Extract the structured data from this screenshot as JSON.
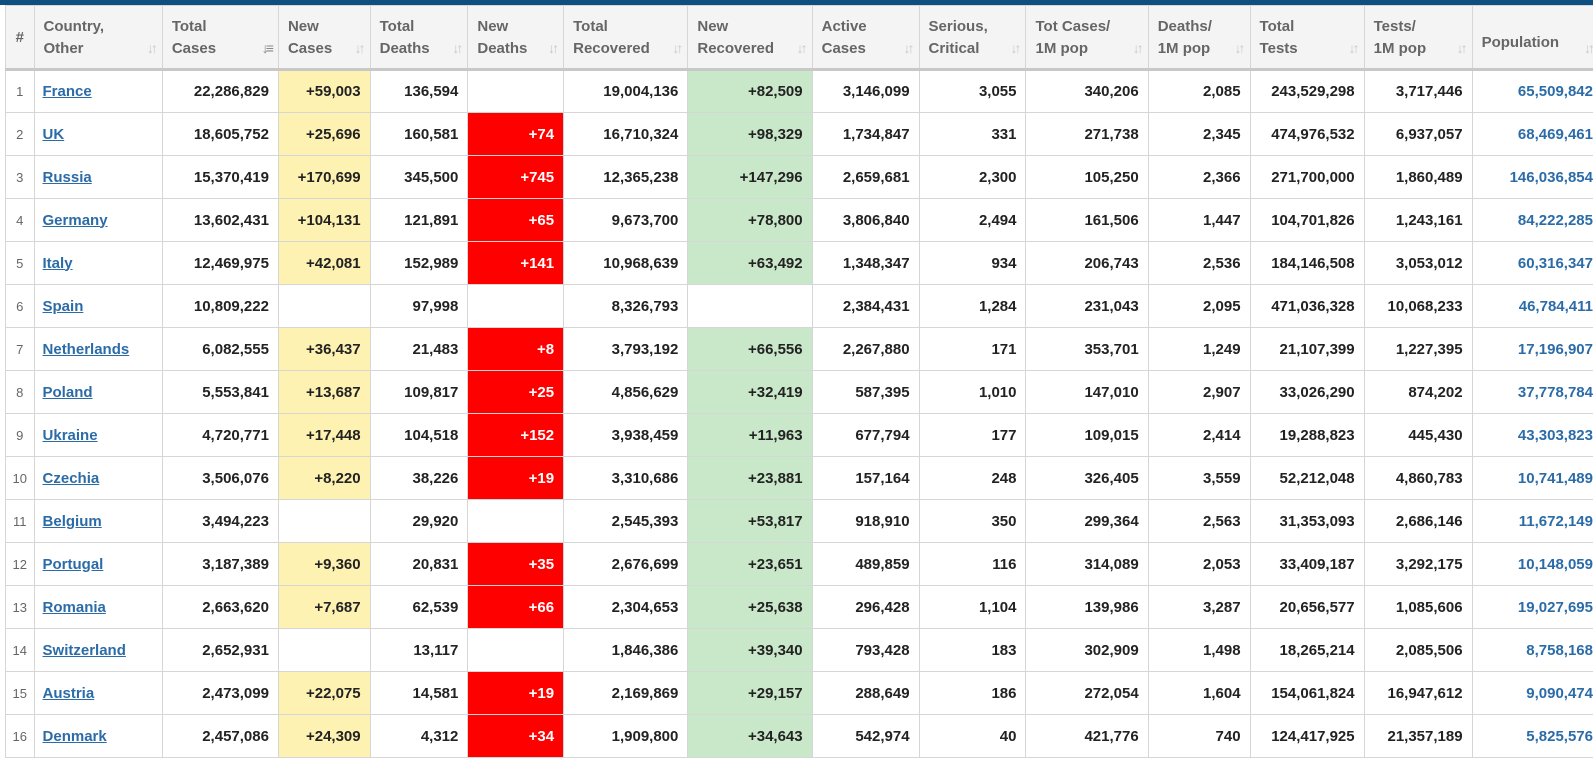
{
  "headers": [
    {
      "key": "idx",
      "lines": [
        "#"
      ]
    },
    {
      "key": "country",
      "lines": [
        "Country,",
        "Other"
      ]
    },
    {
      "key": "total_cases",
      "lines": [
        "Total",
        "Cases"
      ]
    },
    {
      "key": "new_cases",
      "lines": [
        "New",
        "Cases"
      ]
    },
    {
      "key": "total_deaths",
      "lines": [
        "Total",
        "Deaths"
      ]
    },
    {
      "key": "new_deaths",
      "lines": [
        "New",
        "Deaths"
      ]
    },
    {
      "key": "total_recovered",
      "lines": [
        "Total",
        "Recovered"
      ]
    },
    {
      "key": "new_recovered",
      "lines": [
        "New",
        "Recovered"
      ]
    },
    {
      "key": "active_cases",
      "lines": [
        "Active",
        "Cases"
      ]
    },
    {
      "key": "serious_critical",
      "lines": [
        "Serious,",
        "Critical"
      ]
    },
    {
      "key": "cases_per_1m",
      "lines": [
        "Tot Cases/",
        "1M pop"
      ]
    },
    {
      "key": "deaths_per_1m",
      "lines": [
        "Deaths/",
        "1M pop"
      ]
    },
    {
      "key": "total_tests",
      "lines": [
        "Total",
        "Tests"
      ]
    },
    {
      "key": "tests_per_1m",
      "lines": [
        "Tests/",
        "1M pop"
      ]
    },
    {
      "key": "population",
      "lines": [
        "Population"
      ]
    }
  ],
  "sort_icon": "sort-arrows-icon",
  "sorted_column": "total_cases",
  "colors": {
    "new_cases_bg": "#fef2b3",
    "new_deaths_bg": "#ff0000",
    "new_recovered_bg": "#c9e7c9",
    "link": "#2b6ca8",
    "top_bar": "#0f4f80"
  },
  "rows": [
    {
      "idx": "1",
      "country": "France",
      "total_cases": "22,286,829",
      "new_cases": "+59,003",
      "total_deaths": "136,594",
      "new_deaths": "",
      "total_recovered": "19,004,136",
      "new_recovered": "+82,509",
      "active_cases": "3,146,099",
      "serious_critical": "3,055",
      "cases_per_1m": "340,206",
      "deaths_per_1m": "2,085",
      "total_tests": "243,529,298",
      "tests_per_1m": "3,717,446",
      "population": "65,509,842"
    },
    {
      "idx": "2",
      "country": "UK",
      "total_cases": "18,605,752",
      "new_cases": "+25,696",
      "total_deaths": "160,581",
      "new_deaths": "+74",
      "total_recovered": "16,710,324",
      "new_recovered": "+98,329",
      "active_cases": "1,734,847",
      "serious_critical": "331",
      "cases_per_1m": "271,738",
      "deaths_per_1m": "2,345",
      "total_tests": "474,976,532",
      "tests_per_1m": "6,937,057",
      "population": "68,469,461"
    },
    {
      "idx": "3",
      "country": "Russia",
      "total_cases": "15,370,419",
      "new_cases": "+170,699",
      "total_deaths": "345,500",
      "new_deaths": "+745",
      "total_recovered": "12,365,238",
      "new_recovered": "+147,296",
      "active_cases": "2,659,681",
      "serious_critical": "2,300",
      "cases_per_1m": "105,250",
      "deaths_per_1m": "2,366",
      "total_tests": "271,700,000",
      "tests_per_1m": "1,860,489",
      "population": "146,036,854"
    },
    {
      "idx": "4",
      "country": "Germany",
      "total_cases": "13,602,431",
      "new_cases": "+104,131",
      "total_deaths": "121,891",
      "new_deaths": "+65",
      "total_recovered": "9,673,700",
      "new_recovered": "+78,800",
      "active_cases": "3,806,840",
      "serious_critical": "2,494",
      "cases_per_1m": "161,506",
      "deaths_per_1m": "1,447",
      "total_tests": "104,701,826",
      "tests_per_1m": "1,243,161",
      "population": "84,222,285"
    },
    {
      "idx": "5",
      "country": "Italy",
      "total_cases": "12,469,975",
      "new_cases": "+42,081",
      "total_deaths": "152,989",
      "new_deaths": "+141",
      "total_recovered": "10,968,639",
      "new_recovered": "+63,492",
      "active_cases": "1,348,347",
      "serious_critical": "934",
      "cases_per_1m": "206,743",
      "deaths_per_1m": "2,536",
      "total_tests": "184,146,508",
      "tests_per_1m": "3,053,012",
      "population": "60,316,347"
    },
    {
      "idx": "6",
      "country": "Spain",
      "total_cases": "10,809,222",
      "new_cases": "",
      "total_deaths": "97,998",
      "new_deaths": "",
      "total_recovered": "8,326,793",
      "new_recovered": "",
      "active_cases": "2,384,431",
      "serious_critical": "1,284",
      "cases_per_1m": "231,043",
      "deaths_per_1m": "2,095",
      "total_tests": "471,036,328",
      "tests_per_1m": "10,068,233",
      "population": "46,784,411"
    },
    {
      "idx": "7",
      "country": "Netherlands",
      "total_cases": "6,082,555",
      "new_cases": "+36,437",
      "total_deaths": "21,483",
      "new_deaths": "+8",
      "total_recovered": "3,793,192",
      "new_recovered": "+66,556",
      "active_cases": "2,267,880",
      "serious_critical": "171",
      "cases_per_1m": "353,701",
      "deaths_per_1m": "1,249",
      "total_tests": "21,107,399",
      "tests_per_1m": "1,227,395",
      "population": "17,196,907"
    },
    {
      "idx": "8",
      "country": "Poland",
      "total_cases": "5,553,841",
      "new_cases": "+13,687",
      "total_deaths": "109,817",
      "new_deaths": "+25",
      "total_recovered": "4,856,629",
      "new_recovered": "+32,419",
      "active_cases": "587,395",
      "serious_critical": "1,010",
      "cases_per_1m": "147,010",
      "deaths_per_1m": "2,907",
      "total_tests": "33,026,290",
      "tests_per_1m": "874,202",
      "population": "37,778,784"
    },
    {
      "idx": "9",
      "country": "Ukraine",
      "total_cases": "4,720,771",
      "new_cases": "+17,448",
      "total_deaths": "104,518",
      "new_deaths": "+152",
      "total_recovered": "3,938,459",
      "new_recovered": "+11,963",
      "active_cases": "677,794",
      "serious_critical": "177",
      "cases_per_1m": "109,015",
      "deaths_per_1m": "2,414",
      "total_tests": "19,288,823",
      "tests_per_1m": "445,430",
      "population": "43,303,823"
    },
    {
      "idx": "10",
      "country": "Czechia",
      "total_cases": "3,506,076",
      "new_cases": "+8,220",
      "total_deaths": "38,226",
      "new_deaths": "+19",
      "total_recovered": "3,310,686",
      "new_recovered": "+23,881",
      "active_cases": "157,164",
      "serious_critical": "248",
      "cases_per_1m": "326,405",
      "deaths_per_1m": "3,559",
      "total_tests": "52,212,048",
      "tests_per_1m": "4,860,783",
      "population": "10,741,489"
    },
    {
      "idx": "11",
      "country": "Belgium",
      "total_cases": "3,494,223",
      "new_cases": "",
      "total_deaths": "29,920",
      "new_deaths": "",
      "total_recovered": "2,545,393",
      "new_recovered": "+53,817",
      "active_cases": "918,910",
      "serious_critical": "350",
      "cases_per_1m": "299,364",
      "deaths_per_1m": "2,563",
      "total_tests": "31,353,093",
      "tests_per_1m": "2,686,146",
      "population": "11,672,149"
    },
    {
      "idx": "12",
      "country": "Portugal",
      "total_cases": "3,187,389",
      "new_cases": "+9,360",
      "total_deaths": "20,831",
      "new_deaths": "+35",
      "total_recovered": "2,676,699",
      "new_recovered": "+23,651",
      "active_cases": "489,859",
      "serious_critical": "116",
      "cases_per_1m": "314,089",
      "deaths_per_1m": "2,053",
      "total_tests": "33,409,187",
      "tests_per_1m": "3,292,175",
      "population": "10,148,059"
    },
    {
      "idx": "13",
      "country": "Romania",
      "total_cases": "2,663,620",
      "new_cases": "+7,687",
      "total_deaths": "62,539",
      "new_deaths": "+66",
      "total_recovered": "2,304,653",
      "new_recovered": "+25,638",
      "active_cases": "296,428",
      "serious_critical": "1,104",
      "cases_per_1m": "139,986",
      "deaths_per_1m": "3,287",
      "total_tests": "20,656,577",
      "tests_per_1m": "1,085,606",
      "population": "19,027,695"
    },
    {
      "idx": "14",
      "country": "Switzerland",
      "total_cases": "2,652,931",
      "new_cases": "",
      "total_deaths": "13,117",
      "new_deaths": "",
      "total_recovered": "1,846,386",
      "new_recovered": "+39,340",
      "active_cases": "793,428",
      "serious_critical": "183",
      "cases_per_1m": "302,909",
      "deaths_per_1m": "1,498",
      "total_tests": "18,265,214",
      "tests_per_1m": "2,085,506",
      "population": "8,758,168"
    },
    {
      "idx": "15",
      "country": "Austria",
      "total_cases": "2,473,099",
      "new_cases": "+22,075",
      "total_deaths": "14,581",
      "new_deaths": "+19",
      "total_recovered": "2,169,869",
      "new_recovered": "+29,157",
      "active_cases": "288,649",
      "serious_critical": "186",
      "cases_per_1m": "272,054",
      "deaths_per_1m": "1,604",
      "total_tests": "154,061,824",
      "tests_per_1m": "16,947,612",
      "population": "9,090,474"
    },
    {
      "idx": "16",
      "country": "Denmark",
      "total_cases": "2,457,086",
      "new_cases": "+24,309",
      "total_deaths": "4,312",
      "new_deaths": "+34",
      "total_recovered": "1,909,800",
      "new_recovered": "+34,643",
      "active_cases": "542,974",
      "serious_critical": "40",
      "cases_per_1m": "421,776",
      "deaths_per_1m": "740",
      "total_tests": "124,417,925",
      "tests_per_1m": "21,357,189",
      "population": "5,825,576"
    }
  ]
}
